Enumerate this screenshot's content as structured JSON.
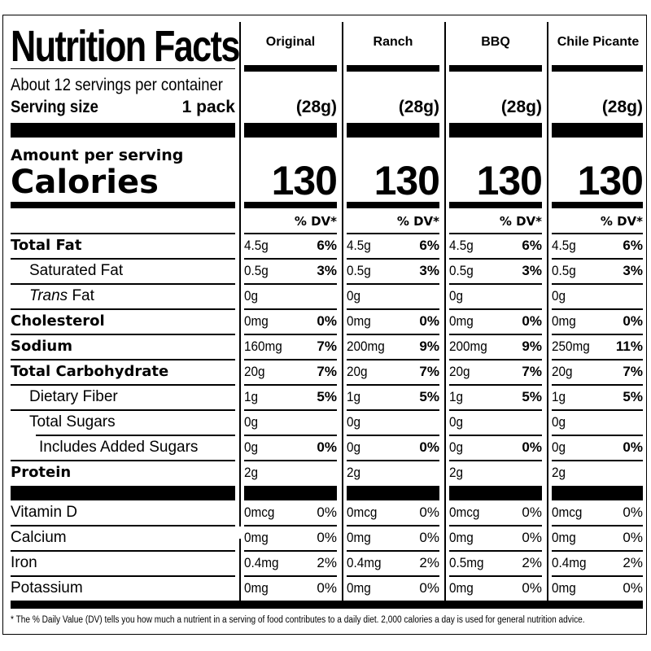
{
  "label": {
    "title": "Nutrition Facts",
    "servings_per_container": "About 12 servings per container",
    "serving_size_label": "Serving size",
    "serving_size_value": "1 pack",
    "amount_per_serving": "Amount per serving",
    "calories_label": "Calories",
    "dv_header": "% DV*",
    "footnote": "* The % Daily Value (DV) tells you how much a nutrient in a serving of food contributes to a daily diet. 2,000 calories a day is used for general nutrition advice."
  },
  "nutrient_labels": {
    "total_fat": "Total Fat",
    "saturated_fat": "Saturated Fat",
    "trans_fat_italic": "Trans",
    "trans_fat_rest": " Fat",
    "cholesterol": "Cholesterol",
    "sodium": "Sodium",
    "total_carbohydrate": "Total Carbohydrate",
    "dietary_fiber": "Dietary Fiber",
    "total_sugars": "Total Sugars",
    "added_sugars": "Includes Added Sugars",
    "protein": "Protein",
    "vitamin_d": "Vitamin D",
    "calcium": "Calcium",
    "iron": "Iron",
    "potassium": "Potassium"
  },
  "flavors": [
    {
      "name": "Original",
      "serving": "(28g)",
      "calories": "130",
      "total_fat": {
        "amt": "4.5g",
        "dv": "6%"
      },
      "saturated_fat": {
        "amt": "0.5g",
        "dv": "3%"
      },
      "trans_fat": {
        "amt": "0g",
        "dv": ""
      },
      "cholesterol": {
        "amt": "0mg",
        "dv": "0%"
      },
      "sodium": {
        "amt": "160mg",
        "dv": "7%"
      },
      "total_carbohydrate": {
        "amt": "20g",
        "dv": "7%"
      },
      "dietary_fiber": {
        "amt": "1g",
        "dv": "5%"
      },
      "total_sugars": {
        "amt": "0g",
        "dv": ""
      },
      "added_sugars": {
        "amt": "0g",
        "dv": "0%"
      },
      "protein": {
        "amt": "2g",
        "dv": ""
      },
      "vitamin_d": {
        "amt": "0mcg",
        "dv": "0%"
      },
      "calcium": {
        "amt": "0mg",
        "dv": "0%"
      },
      "iron": {
        "amt": "0.4mg",
        "dv": "2%"
      },
      "potassium": {
        "amt": "0mg",
        "dv": "0%"
      }
    },
    {
      "name": "Ranch",
      "serving": "(28g)",
      "calories": "130",
      "total_fat": {
        "amt": "4.5g",
        "dv": "6%"
      },
      "saturated_fat": {
        "amt": "0.5g",
        "dv": "3%"
      },
      "trans_fat": {
        "amt": "0g",
        "dv": ""
      },
      "cholesterol": {
        "amt": "0mg",
        "dv": "0%"
      },
      "sodium": {
        "amt": "200mg",
        "dv": "9%"
      },
      "total_carbohydrate": {
        "amt": "20g",
        "dv": "7%"
      },
      "dietary_fiber": {
        "amt": "1g",
        "dv": "5%"
      },
      "total_sugars": {
        "amt": "0g",
        "dv": ""
      },
      "added_sugars": {
        "amt": "0g",
        "dv": "0%"
      },
      "protein": {
        "amt": "2g",
        "dv": ""
      },
      "vitamin_d": {
        "amt": "0mcg",
        "dv": "0%"
      },
      "calcium": {
        "amt": "0mg",
        "dv": "0%"
      },
      "iron": {
        "amt": "0.4mg",
        "dv": "2%"
      },
      "potassium": {
        "amt": "0mg",
        "dv": "0%"
      }
    },
    {
      "name": "BBQ",
      "serving": "(28g)",
      "calories": "130",
      "total_fat": {
        "amt": "4.5g",
        "dv": "6%"
      },
      "saturated_fat": {
        "amt": "0.5g",
        "dv": "3%"
      },
      "trans_fat": {
        "amt": "0g",
        "dv": ""
      },
      "cholesterol": {
        "amt": "0mg",
        "dv": "0%"
      },
      "sodium": {
        "amt": "200mg",
        "dv": "9%"
      },
      "total_carbohydrate": {
        "amt": "20g",
        "dv": "7%"
      },
      "dietary_fiber": {
        "amt": "1g",
        "dv": "5%"
      },
      "total_sugars": {
        "amt": "0g",
        "dv": ""
      },
      "added_sugars": {
        "amt": "0g",
        "dv": "0%"
      },
      "protein": {
        "amt": "2g",
        "dv": ""
      },
      "vitamin_d": {
        "amt": "0mcg",
        "dv": "0%"
      },
      "calcium": {
        "amt": "0mg",
        "dv": "0%"
      },
      "iron": {
        "amt": "0.5mg",
        "dv": "2%"
      },
      "potassium": {
        "amt": "0mg",
        "dv": "0%"
      }
    },
    {
      "name": "Chile Picante",
      "serving": "(28g)",
      "calories": "130",
      "total_fat": {
        "amt": "4.5g",
        "dv": "6%"
      },
      "saturated_fat": {
        "amt": "0.5g",
        "dv": "3%"
      },
      "trans_fat": {
        "amt": "0g",
        "dv": ""
      },
      "cholesterol": {
        "amt": "0mg",
        "dv": "0%"
      },
      "sodium": {
        "amt": "250mg",
        "dv": "11%"
      },
      "total_carbohydrate": {
        "amt": "20g",
        "dv": "7%"
      },
      "dietary_fiber": {
        "amt": "1g",
        "dv": "5%"
      },
      "total_sugars": {
        "amt": "0g",
        "dv": ""
      },
      "added_sugars": {
        "amt": "0g",
        "dv": "0%"
      },
      "protein": {
        "amt": "2g",
        "dv": ""
      },
      "vitamin_d": {
        "amt": "0mcg",
        "dv": "0%"
      },
      "calcium": {
        "amt": "0mg",
        "dv": "0%"
      },
      "iron": {
        "amt": "0.4mg",
        "dv": "2%"
      },
      "potassium": {
        "amt": "0mg",
        "dv": "0%"
      }
    }
  ]
}
